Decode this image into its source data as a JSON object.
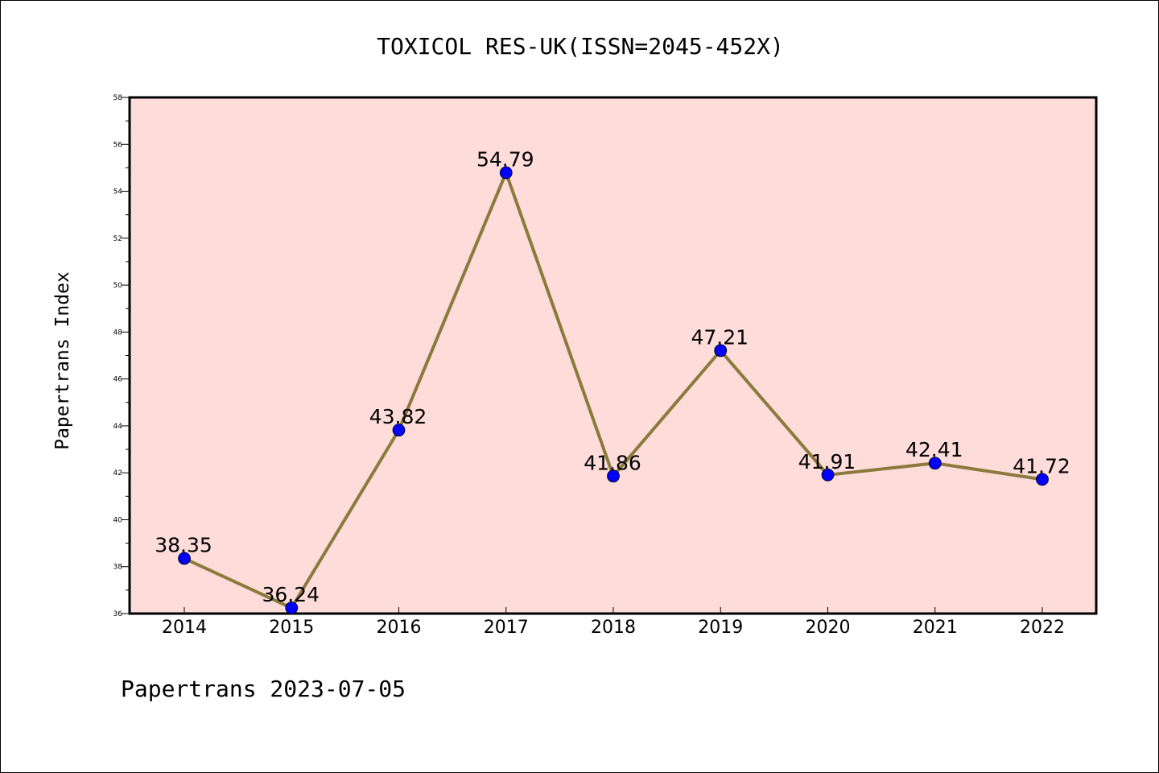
{
  "chart_data": {
    "type": "line",
    "title": "TOXICOL RES-UK(ISSN=2045-452X)",
    "xlabel": "",
    "ylabel": "Papertrans Index",
    "footer": "Papertrans 2023-07-05",
    "categories": [
      "2014",
      "2015",
      "2016",
      "2017",
      "2018",
      "2019",
      "2020",
      "2021",
      "2022"
    ],
    "series": [
      {
        "values": [
          38.35,
          36.24,
          43.82,
          54.79,
          41.86,
          47.21,
          41.91,
          42.41,
          41.72
        ],
        "labels": [
          "38.35",
          "36.24",
          "43.82",
          "54.79",
          "41.86",
          "47.21",
          "41.91",
          "42.41",
          "41.72"
        ]
      }
    ],
    "ylim": [
      36,
      58
    ],
    "yticks": [
      "36",
      "38",
      "40",
      "42",
      "44",
      "46",
      "48",
      "50",
      "52",
      "54",
      "56",
      "58"
    ],
    "grid": false,
    "legend": "none",
    "colors": {
      "plot_background": "#fddcd9",
      "line": "#8b7a3c",
      "marker": "#0000ff",
      "axes": "#000000"
    }
  }
}
